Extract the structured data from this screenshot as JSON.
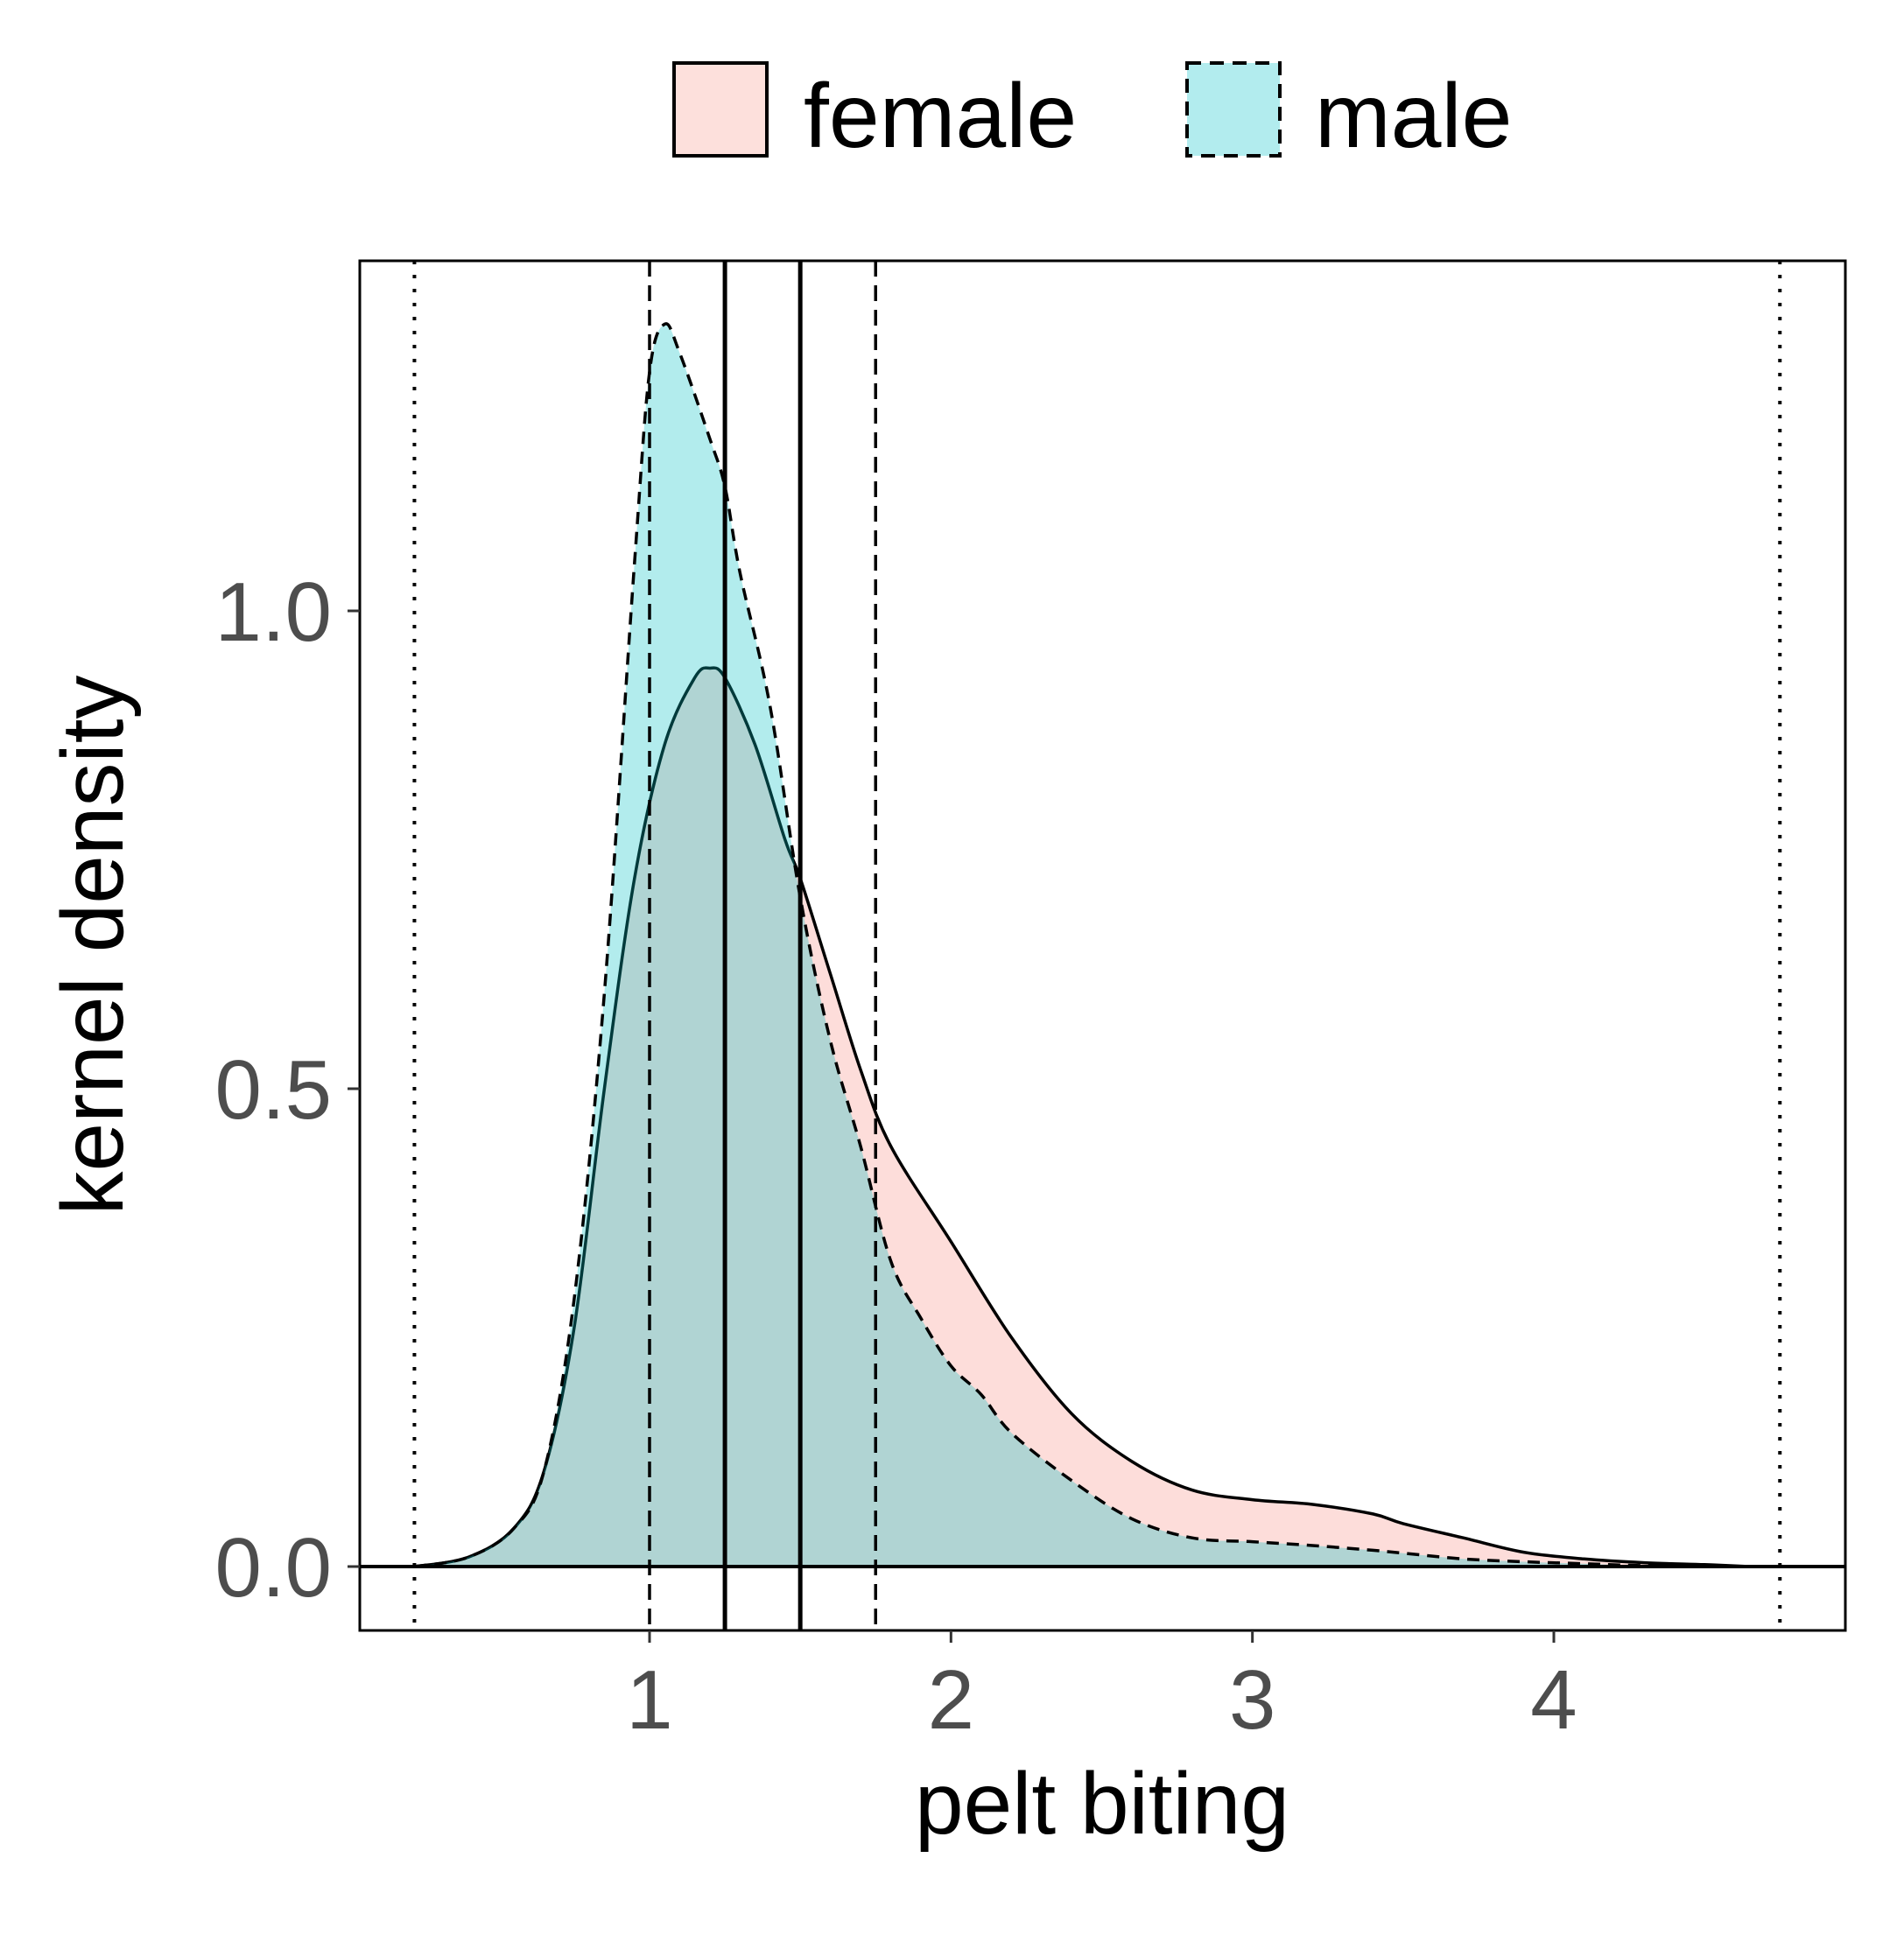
{
  "chart_data": {
    "type": "density",
    "title": "",
    "xlabel": "pelt biting",
    "ylabel": "kernel density",
    "xlim": [
      0.0,
      4.95
    ],
    "ylim": [
      -0.065,
      1.36
    ],
    "x_ticks": [
      1,
      2,
      3,
      4
    ],
    "x_tick_labels": [
      "1",
      "2",
      "3",
      "4"
    ],
    "y_ticks": [
      0.0,
      0.5,
      1.0
    ],
    "y_tick_labels": [
      "0.0",
      "0.5",
      "1.0"
    ],
    "grid": false,
    "legend_position": "top",
    "series": [
      {
        "name": "female",
        "fill_color": "#F8766D",
        "fill_opacity": 0.25,
        "line_style": "solid",
        "x": [
          0.22,
          0.4,
          0.55,
          0.65,
          0.75,
          0.85,
          0.95,
          1.05,
          1.15,
          1.2,
          1.25,
          1.35,
          1.45,
          1.5,
          1.6,
          1.7,
          1.8,
          2.0,
          2.2,
          2.4,
          2.6,
          2.8,
          3.0,
          3.2,
          3.4,
          3.5,
          3.7,
          3.9,
          4.1,
          4.3,
          4.5,
          4.65
        ],
        "density": [
          0.0,
          0.01,
          0.04,
          0.1,
          0.25,
          0.5,
          0.72,
          0.86,
          0.93,
          0.94,
          0.93,
          0.86,
          0.76,
          0.72,
          0.62,
          0.52,
          0.44,
          0.34,
          0.24,
          0.16,
          0.11,
          0.08,
          0.07,
          0.065,
          0.055,
          0.045,
          0.03,
          0.015,
          0.008,
          0.004,
          0.002,
          0.0
        ]
      },
      {
        "name": "male",
        "fill_color": "#00BFC4",
        "fill_opacity": 0.3,
        "line_style": "dashed",
        "x": [
          0.22,
          0.4,
          0.55,
          0.65,
          0.75,
          0.85,
          0.95,
          1.0,
          1.05,
          1.1,
          1.2,
          1.25,
          1.3,
          1.4,
          1.5,
          1.6,
          1.7,
          1.8,
          1.9,
          2.0,
          2.1,
          2.2,
          2.4,
          2.6,
          2.8,
          3.0,
          3.2,
          3.4,
          3.5,
          3.7,
          3.9,
          4.1,
          4.3,
          4.65
        ],
        "density": [
          0.0,
          0.01,
          0.04,
          0.1,
          0.28,
          0.6,
          1.05,
          1.25,
          1.3,
          1.27,
          1.18,
          1.13,
          1.04,
          0.9,
          0.7,
          0.55,
          0.44,
          0.32,
          0.26,
          0.21,
          0.18,
          0.14,
          0.09,
          0.05,
          0.03,
          0.026,
          0.022,
          0.017,
          0.014,
          0.008,
          0.005,
          0.003,
          0.001,
          0.0
        ]
      }
    ],
    "reference_lines": [
      {
        "x": 0.22,
        "style": "dotted"
      },
      {
        "x": 1.0,
        "style": "dashed"
      },
      {
        "x": 1.25,
        "style": "solid"
      },
      {
        "x": 1.5,
        "style": "solid"
      },
      {
        "x": 1.75,
        "style": "dashed"
      },
      {
        "x": 4.75,
        "style": "dotted"
      }
    ],
    "hline": 0.0
  }
}
